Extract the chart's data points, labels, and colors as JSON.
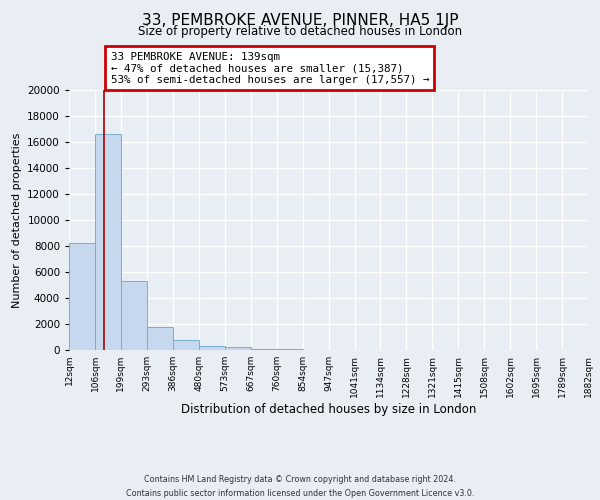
{
  "title": "33, PEMBROKE AVENUE, PINNER, HA5 1JP",
  "subtitle": "Size of property relative to detached houses in London",
  "xlabel": "Distribution of detached houses by size in London",
  "ylabel": "Number of detached properties",
  "bar_edges": [
    12,
    106,
    199,
    293,
    386,
    480,
    573,
    667,
    760,
    854,
    947,
    1041,
    1134,
    1228,
    1321,
    1415,
    1508,
    1602,
    1695,
    1789,
    1882
  ],
  "bar_heights": [
    8200,
    16600,
    5300,
    1750,
    800,
    300,
    200,
    100,
    80,
    0,
    0,
    0,
    0,
    0,
    0,
    0,
    0,
    0,
    0,
    0
  ],
  "tick_labels": [
    "12sqm",
    "106sqm",
    "199sqm",
    "293sqm",
    "386sqm",
    "480sqm",
    "573sqm",
    "667sqm",
    "760sqm",
    "854sqm",
    "947sqm",
    "1041sqm",
    "1134sqm",
    "1228sqm",
    "1321sqm",
    "1415sqm",
    "1508sqm",
    "1602sqm",
    "1695sqm",
    "1789sqm",
    "1882sqm"
  ],
  "bar_color": "#c5d8ed",
  "bar_edge_color": "#7aadcf",
  "red_line_x": 139,
  "annotation_title": "33 PEMBROKE AVENUE: 139sqm",
  "annotation_line1": "← 47% of detached houses are smaller (15,387)",
  "annotation_line2": "53% of semi-detached houses are larger (17,557) →",
  "annotation_box_color": "#ffffff",
  "annotation_box_edge": "#cc0000",
  "ylim": [
    0,
    20000
  ],
  "yticks": [
    0,
    2000,
    4000,
    6000,
    8000,
    10000,
    12000,
    14000,
    16000,
    18000,
    20000
  ],
  "fig_bg": "#e8eef4",
  "ax_bg": "#e8eef4",
  "grid_color": "#ffffff",
  "footer1": "Contains HM Land Registry data © Crown copyright and database right 2024.",
  "footer2": "Contains public sector information licensed under the Open Government Licence v3.0."
}
